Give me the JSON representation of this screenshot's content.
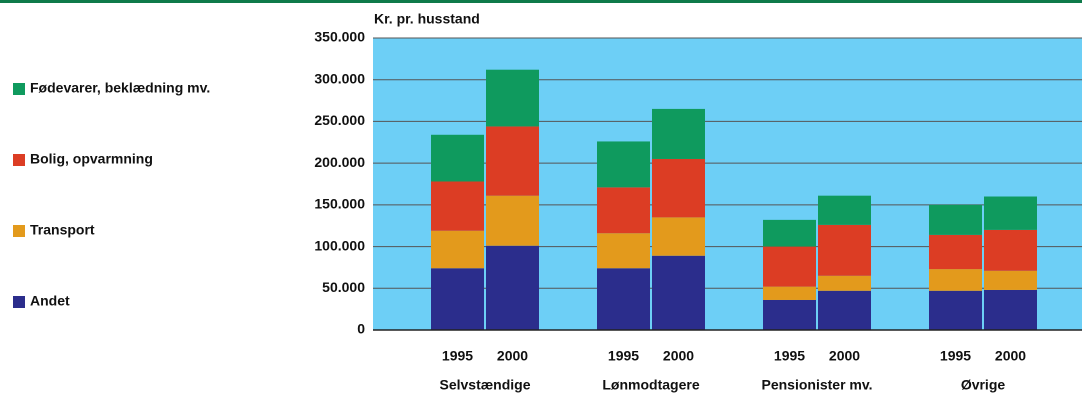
{
  "chart_data": {
    "type": "stacked_bar",
    "y_label": "Kr. pr. husstand",
    "categories": [
      "1995",
      "2000",
      "1995",
      "2000",
      "1995",
      "2000",
      "1995",
      "2000"
    ],
    "groups": [
      "Selvstændige",
      "Lønmodtagere",
      "Pensionister mv.",
      "Øvrige"
    ],
    "series": [
      {
        "name": "Andet",
        "color": "#2b2d8c",
        "values": [
          74000,
          101000,
          74000,
          89000,
          36000,
          47000,
          47000,
          48000
        ]
      },
      {
        "name": "Transport",
        "color": "#e39a1c",
        "values": [
          45000,
          60000,
          42000,
          46000,
          16000,
          18000,
          26000,
          23000
        ]
      },
      {
        "name": "Bolig, opvarmning",
        "color": "#dc3d24",
        "values": [
          59000,
          83000,
          55000,
          70000,
          48000,
          61000,
          41000,
          49000
        ]
      },
      {
        "name": "Fødevarer, beklædning mv.",
        "color": "#0f9a5e",
        "values": [
          56000,
          68000,
          55000,
          60000,
          32000,
          35000,
          36000,
          40000
        ]
      }
    ],
    "ylim": [
      0,
      350000
    ],
    "yticks": [
      0,
      {
        "value": 50000,
        "label": "50.000"
      },
      {
        "value": 100000,
        "label": "100.000"
      },
      {
        "value": 150000,
        "label": "150.000"
      },
      {
        "value": 200000,
        "label": "200.000"
      },
      {
        "value": 250000,
        "label": "250.000"
      },
      {
        "value": 300000,
        "label": "300.000"
      },
      {
        "value": 350000,
        "label": "350.000"
      }
    ],
    "grid": true,
    "plot_background": "#6dcff6",
    "legend": "left"
  }
}
